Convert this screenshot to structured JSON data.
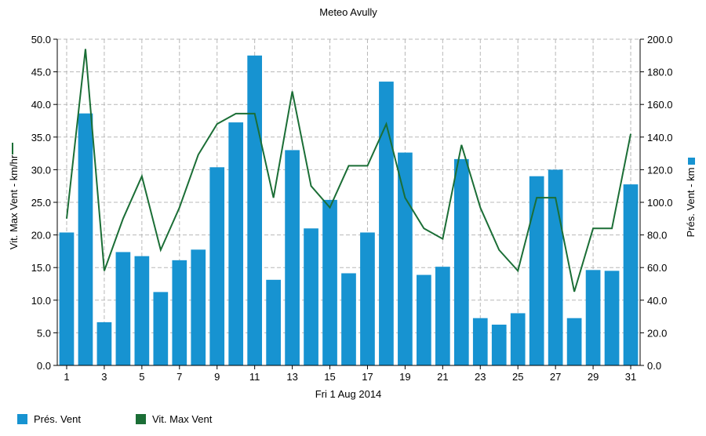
{
  "chart_data": {
    "type": "bar",
    "title": "Meteo  Avully",
    "xlabel": "Fri 1 Aug 2014",
    "x_tick_labels": [
      "1",
      "3",
      "5",
      "7",
      "9",
      "11",
      "13",
      "15",
      "17",
      "19",
      "21",
      "23",
      "25",
      "27",
      "29",
      "31"
    ],
    "y_left": {
      "label": "Vit. Max Vent - km/hr",
      "ylim": [
        0,
        50
      ],
      "tick_labels": [
        "0.0",
        "5.0",
        "10.0",
        "15.0",
        "20.0",
        "25.0",
        "30.0",
        "35.0",
        "40.0",
        "45.0",
        "50.0"
      ]
    },
    "y_right": {
      "label": "Prés. Vent - km",
      "ylim": [
        0,
        200
      ],
      "tick_labels": [
        "0.0",
        "20.0",
        "40.0",
        "60.0",
        "80.0",
        "100.0",
        "120.0",
        "140.0",
        "160.0",
        "180.0",
        "200.0"
      ]
    },
    "grid": true,
    "legend_position": "bottom-left",
    "series": [
      {
        "name": "Prés. Vent",
        "type": "bar",
        "axis": "right",
        "color": "#1793d1",
        "x": [
          1,
          2,
          3,
          4,
          5,
          6,
          7,
          8,
          9,
          10,
          11,
          12,
          13,
          14,
          15,
          16,
          17,
          18,
          19,
          20,
          21,
          22,
          23,
          24,
          25,
          26,
          27,
          28,
          29,
          30,
          31
        ],
        "values": [
          81.5,
          154.5,
          26.5,
          69.5,
          67,
          45,
          64.5,
          71,
          121.5,
          149,
          190,
          52.5,
          132,
          84,
          101.5,
          56.5,
          81.5,
          174,
          130.5,
          55.5,
          60.5,
          126.5,
          29,
          25,
          32,
          116,
          120,
          29,
          58.5,
          58,
          111
        ]
      },
      {
        "name": "Vit. Max Vent",
        "type": "line",
        "axis": "left",
        "color": "#1b6e36",
        "x": [
          1,
          2,
          3,
          4,
          5,
          6,
          7,
          8,
          9,
          10,
          11,
          12,
          13,
          14,
          15,
          16,
          17,
          18,
          19,
          20,
          21,
          22,
          23,
          24,
          25,
          26,
          27,
          28,
          29,
          30,
          31
        ],
        "values": [
          22.5,
          48.5,
          14.5,
          22.5,
          29,
          17.7,
          24.2,
          32.3,
          37,
          38.6,
          38.6,
          25.7,
          42,
          27.5,
          24.2,
          30.6,
          30.6,
          37,
          25.7,
          21,
          19.4,
          33.8,
          24.2,
          17.7,
          14.5,
          25.7,
          25.7,
          11.3,
          21,
          21,
          35.5
        ]
      }
    ]
  }
}
